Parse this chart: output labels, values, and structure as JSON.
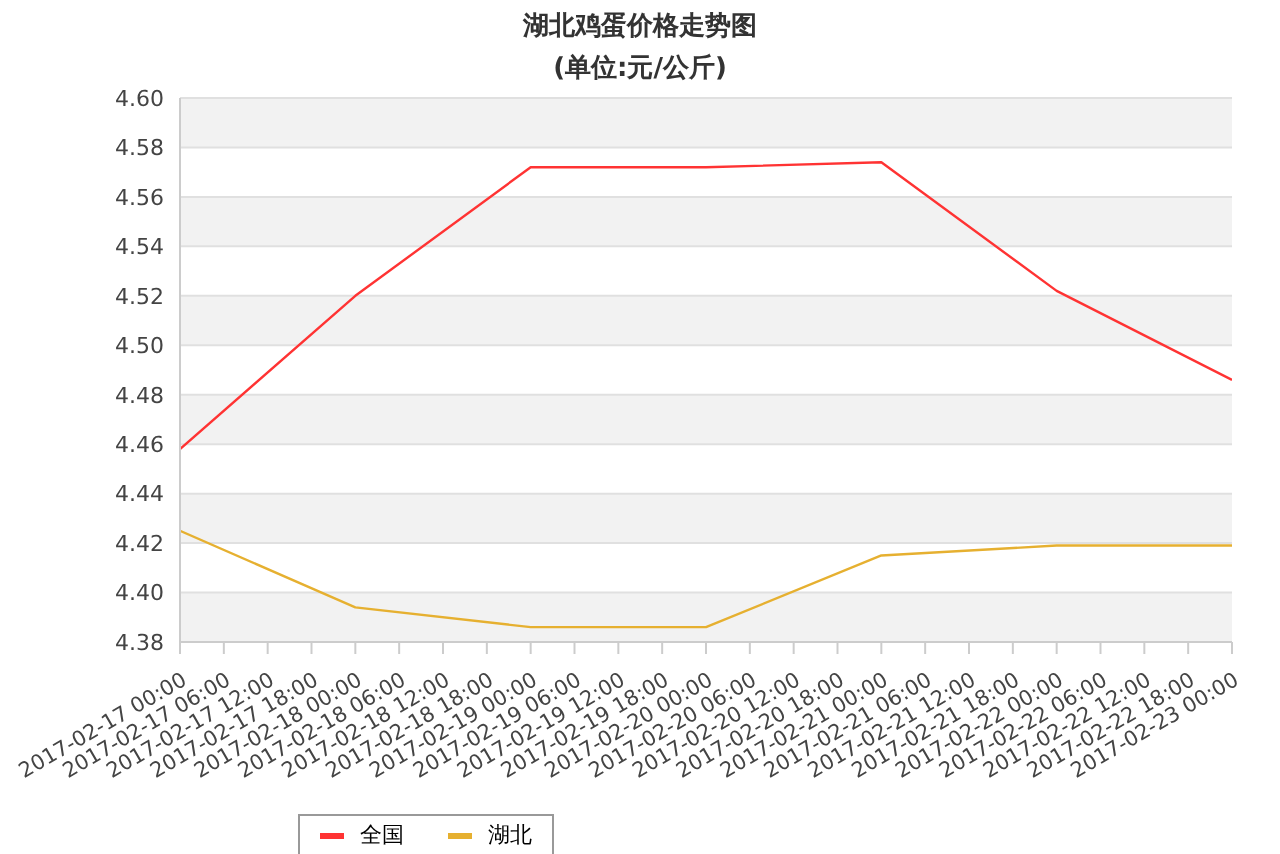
{
  "chart_data": {
    "type": "line",
    "title": "湖北鸡蛋价格走势图",
    "subtitle": "(单位:元/公斤)",
    "x": [
      "2017-02-17T00:00",
      "2017-02-18T00:00",
      "2017-02-19T00:00",
      "2017-02-20T00:00",
      "2017-02-21T00:00",
      "2017-02-22T00:00",
      "2017-02-23T00:00"
    ],
    "series": [
      {
        "name": "全国",
        "color": "#ff3333",
        "values": [
          4.458,
          4.52,
          4.572,
          4.572,
          4.574,
          4.522,
          4.486
        ]
      },
      {
        "name": "湖北",
        "color": "#e6b030",
        "values": [
          4.425,
          4.394,
          4.386,
          4.386,
          4.415,
          4.419,
          4.419
        ]
      }
    ],
    "xlim": [
      "2017-02-17T00:00",
      "2017-02-23T00:00"
    ],
    "xticks": [
      {
        "value": "2017-02-17T00:00",
        "label": "2017-02-17 00:00"
      },
      {
        "value": "2017-02-17T06:00",
        "label": "2017-02-17 06:00"
      },
      {
        "value": "2017-02-17T12:00",
        "label": "2017-02-17 12:00"
      },
      {
        "value": "2017-02-17T18:00",
        "label": "2017-02-17 18:00"
      },
      {
        "value": "2017-02-18T00:00",
        "label": "2017-02-18 00:00"
      },
      {
        "value": "2017-02-18T06:00",
        "label": "2017-02-18 06:00"
      },
      {
        "value": "2017-02-18T12:00",
        "label": "2017-02-18 12:00"
      },
      {
        "value": "2017-02-18T18:00",
        "label": "2017-02-18 18:00"
      },
      {
        "value": "2017-02-19T00:00",
        "label": "2017-02-19 00:00"
      },
      {
        "value": "2017-02-19T06:00",
        "label": "2017-02-19 06:00"
      },
      {
        "value": "2017-02-19T12:00",
        "label": "2017-02-19 12:00"
      },
      {
        "value": "2017-02-19T18:00",
        "label": "2017-02-19 18:00"
      },
      {
        "value": "2017-02-20T00:00",
        "label": "2017-02-20 00:00"
      },
      {
        "value": "2017-02-20T06:00",
        "label": "2017-02-20 06:00"
      },
      {
        "value": "2017-02-20T12:00",
        "label": "2017-02-20 12:00"
      },
      {
        "value": "2017-02-20T18:00",
        "label": "2017-02-20 18:00"
      },
      {
        "value": "2017-02-21T00:00",
        "label": "2017-02-21 00:00"
      },
      {
        "value": "2017-02-21T06:00",
        "label": "2017-02-21 06:00"
      },
      {
        "value": "2017-02-21T12:00",
        "label": "2017-02-21 12:00"
      },
      {
        "value": "2017-02-21T18:00",
        "label": "2017-02-21 18:00"
      },
      {
        "value": "2017-02-22T00:00",
        "label": "2017-02-22 00:00"
      },
      {
        "value": "2017-02-22T06:00",
        "label": "2017-02-22 06:00"
      },
      {
        "value": "2017-02-22T12:00",
        "label": "2017-02-22 12:00"
      },
      {
        "value": "2017-02-22T18:00",
        "label": "2017-02-22 18:00"
      },
      {
        "value": "2017-02-23T00:00",
        "label": "2017-02-23 00:00"
      }
    ],
    "ylim": [
      4.38,
      4.6
    ],
    "yticks": [
      {
        "value": 4.38,
        "label": "4.38"
      },
      {
        "value": 4.4,
        "label": "4.40"
      },
      {
        "value": 4.42,
        "label": "4.42"
      },
      {
        "value": 4.44,
        "label": "4.44"
      },
      {
        "value": 4.46,
        "label": "4.46"
      },
      {
        "value": 4.48,
        "label": "4.48"
      },
      {
        "value": 4.5,
        "label": "4.50"
      },
      {
        "value": 4.52,
        "label": "4.52"
      },
      {
        "value": 4.54,
        "label": "4.54"
      },
      {
        "value": 4.56,
        "label": "4.56"
      },
      {
        "value": 4.58,
        "label": "4.58"
      },
      {
        "value": 4.6,
        "label": "4.60"
      }
    ],
    "grid": "y",
    "legend": "bottom",
    "marker": "none",
    "line_style": "solid"
  }
}
